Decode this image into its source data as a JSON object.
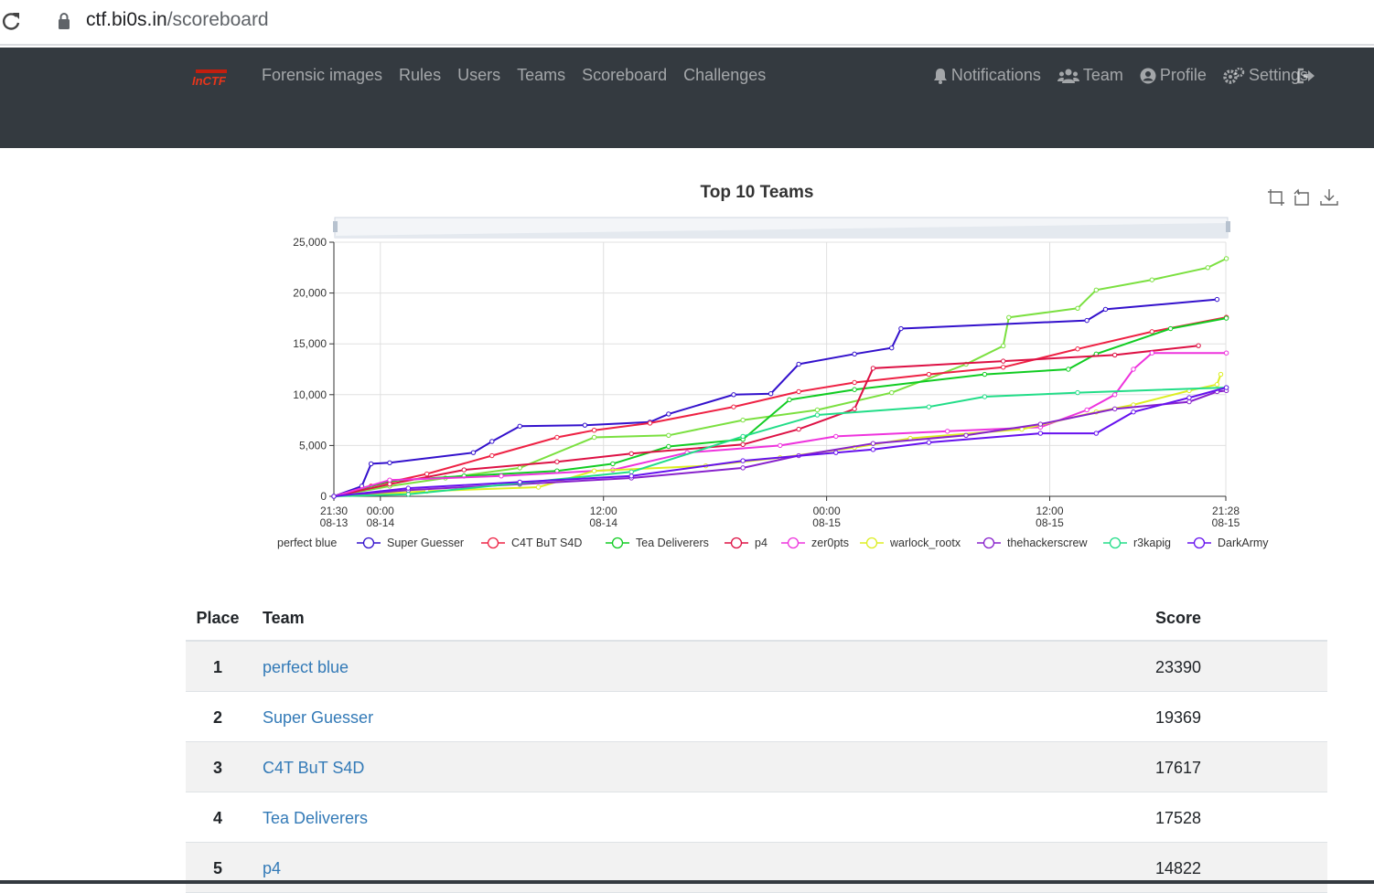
{
  "browser": {
    "url_host": "ctf.bi0s.in",
    "url_path": "/scoreboard"
  },
  "nav": {
    "logo": "InCTF",
    "left": [
      "Forensic images",
      "Rules",
      "Users",
      "Teams",
      "Scoreboard",
      "Challenges"
    ],
    "right": [
      {
        "label": "Notifications",
        "icon": "bell-icon"
      },
      {
        "label": "Team",
        "icon": "users-icon"
      },
      {
        "label": "Profile",
        "icon": "user-circle-icon"
      },
      {
        "label": "Settings",
        "icon": "gears-icon"
      }
    ],
    "logout_icon": "sign-out-icon"
  },
  "chart_data": {
    "type": "line",
    "title": "Top 10 Teams",
    "ylim": [
      0,
      25000
    ],
    "y_ticks": [
      "0",
      "5,000",
      "10,000",
      "15,000",
      "20,000",
      "25,000"
    ],
    "x_ticks": [
      {
        "time": "21:30",
        "date": "08-13"
      },
      {
        "time": "00:00",
        "date": "08-14"
      },
      {
        "time": "12:00",
        "date": "08-14"
      },
      {
        "time": "00:00",
        "date": "08-15"
      },
      {
        "time": "12:00",
        "date": "08-15"
      },
      {
        "time": "21:28",
        "date": "08-15"
      }
    ],
    "grid": true,
    "legend_position": "bottom",
    "series": [
      {
        "name": "perfect blue",
        "color": "#7be040",
        "points": [
          [
            0,
            0
          ],
          [
            3,
            1000
          ],
          [
            6,
            1800
          ],
          [
            10,
            2800
          ],
          [
            14,
            5800
          ],
          [
            18,
            6000
          ],
          [
            22,
            7500
          ],
          [
            26,
            8500
          ],
          [
            30,
            10200
          ],
          [
            34,
            13000
          ],
          [
            36,
            14800
          ],
          [
            36.3,
            17600
          ],
          [
            40,
            18500
          ],
          [
            41,
            20300
          ],
          [
            44,
            21300
          ],
          [
            47,
            22500
          ],
          [
            48,
            23390
          ]
        ]
      },
      {
        "name": "Super Guesser",
        "color": "#3311cc",
        "points": [
          [
            0,
            0
          ],
          [
            1.5,
            1000
          ],
          [
            2,
            3200
          ],
          [
            3,
            3300
          ],
          [
            7.5,
            4300
          ],
          [
            8.5,
            5400
          ],
          [
            10,
            6900
          ],
          [
            13.5,
            7000
          ],
          [
            17,
            7300
          ],
          [
            18,
            8100
          ],
          [
            21.5,
            10000
          ],
          [
            23.5,
            10100
          ],
          [
            25,
            13000
          ],
          [
            28,
            14000
          ],
          [
            30,
            14600
          ],
          [
            30.5,
            16500
          ],
          [
            40.5,
            17300
          ],
          [
            41.5,
            18400
          ],
          [
            47.5,
            19369
          ]
        ]
      },
      {
        "name": "C4T BuT S4D",
        "color": "#ee2244",
        "points": [
          [
            0,
            0
          ],
          [
            2,
            1000
          ],
          [
            5,
            2200
          ],
          [
            8.5,
            4000
          ],
          [
            12,
            5800
          ],
          [
            14,
            6500
          ],
          [
            17,
            7200
          ],
          [
            21.5,
            8800
          ],
          [
            25,
            10300
          ],
          [
            28,
            11200
          ],
          [
            32,
            12000
          ],
          [
            36,
            12700
          ],
          [
            40,
            14500
          ],
          [
            44,
            16200
          ],
          [
            48,
            17617
          ]
        ]
      },
      {
        "name": "Tea Deliverers",
        "color": "#11cc22",
        "points": [
          [
            0,
            0
          ],
          [
            3,
            1500
          ],
          [
            7,
            2000
          ],
          [
            12,
            2500
          ],
          [
            15,
            3200
          ],
          [
            18,
            4900
          ],
          [
            22,
            5600
          ],
          [
            24.5,
            9500
          ],
          [
            28,
            10500
          ],
          [
            35,
            12000
          ],
          [
            39.5,
            12500
          ],
          [
            41,
            14000
          ],
          [
            45,
            16500
          ],
          [
            48,
            17528
          ]
        ]
      },
      {
        "name": "p4",
        "color": "#dd1144",
        "points": [
          [
            0,
            0
          ],
          [
            3,
            1200
          ],
          [
            7,
            2600
          ],
          [
            12,
            3400
          ],
          [
            16,
            4200
          ],
          [
            22,
            5100
          ],
          [
            25,
            6600
          ],
          [
            28,
            8600
          ],
          [
            29,
            12600
          ],
          [
            36,
            13300
          ],
          [
            42,
            13900
          ],
          [
            46.5,
            14822
          ]
        ]
      },
      {
        "name": "zer0pts",
        "color": "#ee33dd",
        "points": [
          [
            0,
            0
          ],
          [
            3,
            1600
          ],
          [
            9,
            2000
          ],
          [
            15,
            2600
          ],
          [
            19,
            4300
          ],
          [
            24,
            5000
          ],
          [
            27,
            5900
          ],
          [
            33,
            6400
          ],
          [
            38,
            6800
          ],
          [
            40.5,
            8500
          ],
          [
            42,
            10000
          ],
          [
            43,
            12500
          ],
          [
            44,
            14100
          ],
          [
            48,
            14100
          ]
        ]
      },
      {
        "name": "warlock_rootx",
        "color": "#ddee22",
        "points": [
          [
            0,
            0
          ],
          [
            5,
            500
          ],
          [
            11,
            900
          ],
          [
            14,
            2500
          ],
          [
            20,
            3000
          ],
          [
            24,
            3800
          ],
          [
            28,
            4800
          ],
          [
            31,
            5700
          ],
          [
            37,
            6600
          ],
          [
            41,
            8300
          ],
          [
            43,
            9000
          ],
          [
            46,
            10400
          ],
          [
            47.5,
            11000
          ],
          [
            47.7,
            12000
          ]
        ]
      },
      {
        "name": "thehackerscrew",
        "color": "#8822cc",
        "points": [
          [
            0,
            0
          ],
          [
            4,
            600
          ],
          [
            10,
            1200
          ],
          [
            16,
            1800
          ],
          [
            22,
            2800
          ],
          [
            25,
            4000
          ],
          [
            29,
            5200
          ],
          [
            34,
            6000
          ],
          [
            38,
            7100
          ],
          [
            42,
            8600
          ],
          [
            46,
            9300
          ],
          [
            47.5,
            10300
          ],
          [
            48,
            10400
          ]
        ]
      },
      {
        "name": "r3kapig",
        "color": "#22dd88",
        "points": [
          [
            0,
            0
          ],
          [
            4,
            200
          ],
          [
            10,
            1300
          ],
          [
            16,
            2400
          ],
          [
            22,
            5900
          ],
          [
            26,
            8000
          ],
          [
            32,
            8800
          ],
          [
            35,
            9800
          ],
          [
            40,
            10200
          ],
          [
            48,
            10700
          ]
        ]
      },
      {
        "name": "DarkArmy",
        "color": "#6611ee",
        "points": [
          [
            0,
            0
          ],
          [
            4,
            800
          ],
          [
            10,
            1400
          ],
          [
            16,
            2000
          ],
          [
            22,
            3500
          ],
          [
            27,
            4300
          ],
          [
            29,
            4600
          ],
          [
            32,
            5300
          ],
          [
            38,
            6200
          ],
          [
            41,
            6200
          ],
          [
            43,
            8300
          ],
          [
            46,
            9700
          ],
          [
            48,
            10700
          ]
        ]
      }
    ]
  },
  "table": {
    "headers": {
      "place": "Place",
      "team": "Team",
      "score": "Score"
    },
    "rows": [
      {
        "place": "1",
        "team": "perfect blue",
        "score": "23390"
      },
      {
        "place": "2",
        "team": "Super Guesser",
        "score": "19369"
      },
      {
        "place": "3",
        "team": "C4T BuT S4D",
        "score": "17617"
      },
      {
        "place": "4",
        "team": "Tea Deliverers",
        "score": "17528"
      },
      {
        "place": "5",
        "team": "p4",
        "score": "14822"
      }
    ]
  }
}
